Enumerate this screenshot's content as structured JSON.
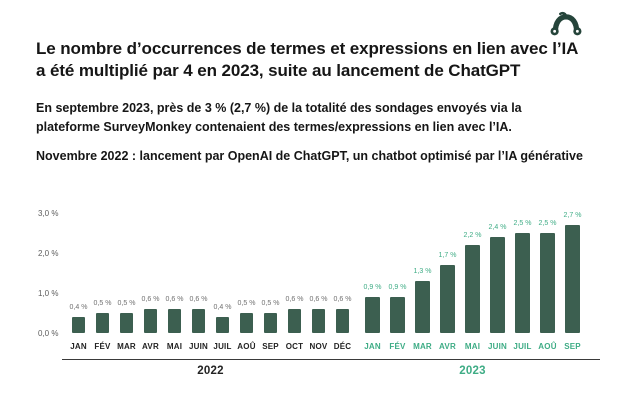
{
  "header": {
    "logo_name": "surveymonkey-monkey-icon",
    "title": "Le nombre d’occurrences de termes et expressions en lien avec l’IA a été multiplié par 4 en 2023, suite au lancement de ChatGPT",
    "subtitle": "En septembre 2023, près de 3 % (2,7 %) de la totalité des sondages envoyés via la plateforme SurveyMonkey contenaient des termes/expressions en lien avec l’IA.",
    "note": "Novembre 2022 : lancement par OpenAI de ChatGPT, un chatbot optimisé par l’IA générative"
  },
  "colors": {
    "bar_green": "#3C5F50",
    "accent_green": "#3EAC85",
    "logo_green": "#25443A",
    "grey_value_label": "#6F6F6F",
    "dark_month_label": "#232323",
    "axis_tick_grey": "#5E5E5E",
    "ink": "#161616"
  },
  "chart_data": {
    "type": "bar",
    "title": "",
    "xlabel": "",
    "ylabel": "",
    "ylim": [
      0,
      3.0
    ],
    "grid": false,
    "legend": "none",
    "ytick_labels": [
      "0,0 %",
      "1,0 %",
      "2,0 %",
      "3,0 %"
    ],
    "series": [
      {
        "name": "2022",
        "year_label": "2022",
        "categories": [
          "JAN",
          "FÉV",
          "MAR",
          "AVR",
          "MAI",
          "JUIN",
          "JUIL",
          "AOÛ",
          "SEP",
          "OCT",
          "NOV",
          "DÉC"
        ],
        "values": [
          0.4,
          0.5,
          0.5,
          0.6,
          0.6,
          0.6,
          0.4,
          0.5,
          0.5,
          0.6,
          0.6,
          0.6
        ],
        "value_labels": [
          "0,4 %",
          "0,5 %",
          "0,5 %",
          "0,6 %",
          "0,6 %",
          "0,6 %",
          "0,4 %",
          "0,5 %",
          "0,5 %",
          "0,6 %",
          "0,6 %",
          "0,6 %"
        ],
        "value_label_color": "#6F6F6F",
        "month_label_color": "#232323",
        "year_label_color": "#232323"
      },
      {
        "name": "2023",
        "year_label": "2023",
        "categories": [
          "JAN",
          "FÉV",
          "MAR",
          "AVR",
          "MAI",
          "JUIN",
          "JUIL",
          "AOÛ",
          "SEP"
        ],
        "values": [
          0.9,
          0.9,
          1.3,
          1.7,
          2.2,
          2.4,
          2.5,
          2.5,
          2.7
        ],
        "value_labels": [
          "0,9 %",
          "0,9 %",
          "1,3 %",
          "1,7 %",
          "2,2 %",
          "2,4 %",
          "2,5 %",
          "2,5 %",
          "2,7 %"
        ],
        "value_label_color": "#3EAC85",
        "month_label_color": "#3EAC85",
        "year_label_color": "#3EAC85"
      }
    ]
  }
}
